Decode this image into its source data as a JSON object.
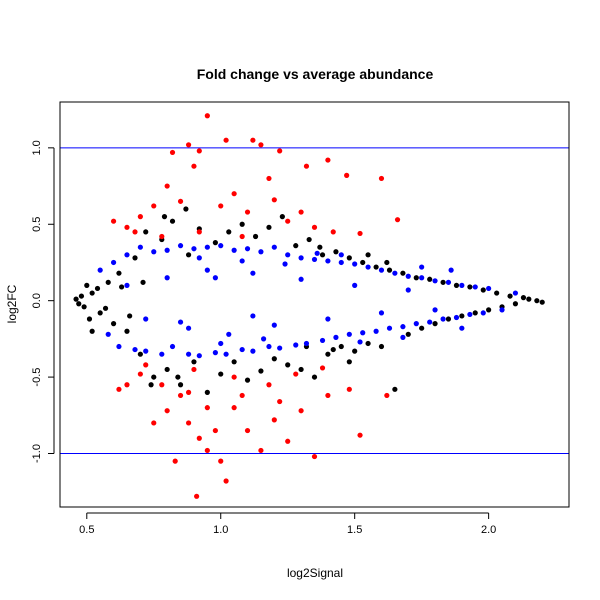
{
  "chart_data": {
    "type": "scatter",
    "title": "Fold change vs average abundance",
    "xlabel": "log2Signal",
    "ylabel": "log2FC",
    "xlim": [
      0.4,
      2.3
    ],
    "ylim": [
      -1.35,
      1.3
    ],
    "x_ticks": [
      0.5,
      1.0,
      1.5,
      2.0
    ],
    "x_tick_labels": [
      "0.5",
      "1.0",
      "1.5",
      "2.0"
    ],
    "y_ticks": [
      -1.0,
      -0.5,
      0.0,
      0.5,
      1.0
    ],
    "y_tick_labels": [
      "-1.0",
      "-0.5",
      "0.0",
      "0.5",
      "1.0"
    ],
    "grid": false,
    "reference_lines": [
      {
        "axis": "y",
        "value": 1.0,
        "color": "#0000ff"
      },
      {
        "axis": "y",
        "value": -1.0,
        "color": "#0000ff"
      }
    ],
    "colors": {
      "not_significant": "#000000",
      "significant_small_fc": "#0000ff",
      "significant_large_fc": "#ff0000",
      "reference_line": "#0000ff"
    },
    "series": [
      {
        "color": "#000000",
        "points": [
          [
            0.46,
            0.01
          ],
          [
            0.47,
            -0.02
          ],
          [
            0.48,
            0.03
          ],
          [
            0.49,
            -0.04
          ],
          [
            0.5,
            0.1
          ],
          [
            0.51,
            -0.12
          ],
          [
            0.52,
            0.05
          ],
          [
            0.55,
            -0.08
          ],
          [
            0.58,
            0.12
          ],
          [
            0.6,
            -0.15
          ],
          [
            0.62,
            0.18
          ],
          [
            0.65,
            -0.2
          ],
          [
            0.68,
            0.28
          ],
          [
            0.7,
            -0.35
          ],
          [
            0.72,
            0.45
          ],
          [
            0.75,
            -0.5
          ],
          [
            0.78,
            0.4
          ],
          [
            0.8,
            -0.45
          ],
          [
            0.82,
            0.52
          ],
          [
            0.85,
            -0.55
          ],
          [
            0.88,
            0.3
          ],
          [
            0.9,
            -0.4
          ],
          [
            0.92,
            0.47
          ],
          [
            0.95,
            -0.6
          ],
          [
            0.98,
            0.38
          ],
          [
            1.0,
            -0.48
          ],
          [
            1.03,
            0.45
          ],
          [
            1.05,
            -0.4
          ],
          [
            1.08,
            0.5
          ],
          [
            1.1,
            -0.52
          ],
          [
            1.13,
            0.42
          ],
          [
            1.15,
            -0.46
          ],
          [
            1.18,
            0.48
          ],
          [
            1.2,
            -0.38
          ],
          [
            1.23,
            0.55
          ],
          [
            1.25,
            -0.42
          ],
          [
            1.28,
            0.36
          ],
          [
            1.3,
            -0.45
          ],
          [
            1.33,
            0.4
          ],
          [
            1.35,
            -0.5
          ],
          [
            1.38,
            0.3
          ],
          [
            1.4,
            -0.35
          ],
          [
            1.43,
            0.32
          ],
          [
            1.45,
            -0.3
          ],
          [
            1.48,
            0.28
          ],
          [
            1.5,
            -0.33
          ],
          [
            1.53,
            0.25
          ],
          [
            1.55,
            -0.28
          ],
          [
            1.58,
            0.22
          ],
          [
            1.6,
            -0.3
          ],
          [
            1.63,
            0.2
          ],
          [
            1.65,
            -0.58
          ],
          [
            1.68,
            0.18
          ],
          [
            1.7,
            -0.22
          ],
          [
            1.73,
            0.15
          ],
          [
            1.75,
            -0.18
          ],
          [
            1.78,
            0.14
          ],
          [
            1.8,
            -0.15
          ],
          [
            1.83,
            0.12
          ],
          [
            1.85,
            -0.12
          ],
          [
            1.88,
            0.1
          ],
          [
            1.9,
            -0.1
          ],
          [
            1.93,
            0.09
          ],
          [
            1.95,
            -0.08
          ],
          [
            1.98,
            0.07
          ],
          [
            2.0,
            -0.06
          ],
          [
            2.03,
            0.05
          ],
          [
            2.05,
            -0.04
          ],
          [
            2.08,
            0.03
          ],
          [
            2.1,
            -0.02
          ],
          [
            2.13,
            0.02
          ],
          [
            2.15,
            0.01
          ],
          [
            2.18,
            0.0
          ],
          [
            2.2,
            -0.01
          ],
          [
            0.52,
            -0.2
          ],
          [
            0.54,
            0.08
          ],
          [
            0.57,
            -0.05
          ],
          [
            0.63,
            0.09
          ],
          [
            0.66,
            -0.1
          ],
          [
            0.71,
            0.12
          ],
          [
            0.74,
            -0.55
          ],
          [
            0.79,
            0.55
          ],
          [
            0.84,
            -0.5
          ],
          [
            0.87,
            0.6
          ],
          [
            1.32,
            -0.3
          ],
          [
            1.37,
            0.35
          ],
          [
            1.42,
            -0.32
          ],
          [
            1.48,
            -0.4
          ],
          [
            1.55,
            0.3
          ],
          [
            1.62,
            0.25
          ]
        ]
      },
      {
        "color": "#0000ff",
        "points": [
          [
            0.55,
            0.2
          ],
          [
            0.58,
            -0.22
          ],
          [
            0.6,
            0.25
          ],
          [
            0.62,
            -0.3
          ],
          [
            0.65,
            0.3
          ],
          [
            0.68,
            -0.32
          ],
          [
            0.7,
            0.35
          ],
          [
            0.72,
            -0.33
          ],
          [
            0.75,
            0.32
          ],
          [
            0.78,
            -0.35
          ],
          [
            0.8,
            0.33
          ],
          [
            0.82,
            -0.3
          ],
          [
            0.85,
            0.36
          ],
          [
            0.88,
            -0.35
          ],
          [
            0.9,
            0.34
          ],
          [
            0.92,
            -0.36
          ],
          [
            0.95,
            0.35
          ],
          [
            0.98,
            -0.34
          ],
          [
            1.0,
            0.36
          ],
          [
            1.02,
            -0.35
          ],
          [
            1.05,
            0.33
          ],
          [
            1.08,
            -0.32
          ],
          [
            1.1,
            0.34
          ],
          [
            1.12,
            -0.33
          ],
          [
            1.15,
            0.32
          ],
          [
            1.18,
            -0.3
          ],
          [
            1.2,
            0.35
          ],
          [
            1.22,
            -0.31
          ],
          [
            1.25,
            0.3
          ],
          [
            1.28,
            -0.29
          ],
          [
            1.3,
            0.28
          ],
          [
            1.32,
            -0.28
          ],
          [
            1.35,
            0.27
          ],
          [
            1.38,
            -0.26
          ],
          [
            1.4,
            0.26
          ],
          [
            1.43,
            -0.24
          ],
          [
            1.45,
            0.25
          ],
          [
            1.48,
            -0.22
          ],
          [
            1.5,
            0.24
          ],
          [
            1.53,
            -0.21
          ],
          [
            1.55,
            0.22
          ],
          [
            1.58,
            -0.2
          ],
          [
            1.6,
            0.2
          ],
          [
            1.63,
            -0.18
          ],
          [
            1.65,
            0.18
          ],
          [
            1.68,
            -0.17
          ],
          [
            1.7,
            0.16
          ],
          [
            1.73,
            -0.15
          ],
          [
            1.75,
            0.15
          ],
          [
            1.78,
            -0.14
          ],
          [
            1.8,
            0.13
          ],
          [
            1.83,
            -0.12
          ],
          [
            1.85,
            0.12
          ],
          [
            1.88,
            -0.11
          ],
          [
            1.9,
            0.1
          ],
          [
            1.93,
            -0.09
          ],
          [
            1.95,
            0.09
          ],
          [
            1.98,
            -0.08
          ],
          [
            2.0,
            0.08
          ],
          [
            2.05,
            -0.06
          ],
          [
            2.1,
            0.05
          ],
          [
            0.65,
            0.1
          ],
          [
            0.72,
            -0.12
          ],
          [
            0.8,
            0.15
          ],
          [
            0.88,
            -0.18
          ],
          [
            0.95,
            0.2
          ],
          [
            1.03,
            -0.22
          ],
          [
            1.12,
            0.18
          ],
          [
            1.2,
            -0.16
          ],
          [
            1.3,
            0.14
          ],
          [
            1.4,
            -0.12
          ],
          [
            1.5,
            0.1
          ],
          [
            1.6,
            -0.08
          ],
          [
            1.7,
            0.07
          ],
          [
            1.8,
            -0.06
          ],
          [
            0.92,
            0.28
          ],
          [
            1.0,
            -0.28
          ],
          [
            1.08,
            0.26
          ],
          [
            1.16,
            -0.25
          ],
          [
            1.24,
            0.24
          ],
          [
            1.86,
            0.2
          ],
          [
            1.9,
            -0.18
          ],
          [
            1.75,
            0.22
          ],
          [
            1.68,
            -0.24
          ],
          [
            1.45,
            0.3
          ],
          [
            1.52,
            -0.27
          ],
          [
            1.36,
            0.31
          ],
          [
            0.98,
            0.15
          ],
          [
            0.85,
            -0.14
          ],
          [
            1.12,
            -0.1
          ]
        ]
      },
      {
        "color": "#ff0000",
        "points": [
          [
            0.95,
            1.21
          ],
          [
            1.02,
            1.05
          ],
          [
            1.12,
            1.05
          ],
          [
            0.82,
            0.97
          ],
          [
            0.88,
            1.02
          ],
          [
            0.92,
            0.98
          ],
          [
            1.15,
            1.02
          ],
          [
            1.22,
            0.98
          ],
          [
            1.4,
            0.92
          ],
          [
            1.6,
            0.8
          ],
          [
            1.47,
            0.82
          ],
          [
            1.32,
            0.88
          ],
          [
            1.18,
            0.8
          ],
          [
            0.9,
            0.88
          ],
          [
            0.8,
            0.75
          ],
          [
            0.85,
            0.65
          ],
          [
            0.75,
            0.62
          ],
          [
            0.7,
            0.55
          ],
          [
            0.65,
            0.48
          ],
          [
            0.6,
            0.52
          ],
          [
            1.0,
            0.62
          ],
          [
            1.05,
            0.7
          ],
          [
            1.1,
            0.58
          ],
          [
            1.2,
            0.66
          ],
          [
            1.25,
            0.52
          ],
          [
            1.3,
            0.58
          ],
          [
            1.35,
            0.48
          ],
          [
            1.42,
            0.45
          ],
          [
            1.52,
            0.44
          ],
          [
            1.66,
            0.53
          ],
          [
            0.78,
            0.42
          ],
          [
            0.92,
            0.45
          ],
          [
            1.08,
            0.42
          ],
          [
            0.68,
            0.45
          ],
          [
            0.72,
            -0.42
          ],
          [
            0.78,
            -0.55
          ],
          [
            0.85,
            -0.62
          ],
          [
            0.8,
            -0.72
          ],
          [
            0.88,
            -0.8
          ],
          [
            0.92,
            -0.9
          ],
          [
            0.95,
            -0.98
          ],
          [
            1.0,
            -1.05
          ],
          [
            1.02,
            -1.18
          ],
          [
            0.91,
            -1.28
          ],
          [
            0.83,
            -1.05
          ],
          [
            0.98,
            -0.85
          ],
          [
            1.05,
            -0.7
          ],
          [
            1.1,
            -0.85
          ],
          [
            1.15,
            -0.98
          ],
          [
            1.2,
            -0.78
          ],
          [
            1.25,
            -0.92
          ],
          [
            1.3,
            -0.72
          ],
          [
            1.35,
            -1.02
          ],
          [
            1.4,
            -0.62
          ],
          [
            1.48,
            -0.58
          ],
          [
            1.52,
            -0.88
          ],
          [
            1.62,
            -0.62
          ],
          [
            0.7,
            -0.48
          ],
          [
            0.65,
            -0.55
          ],
          [
            0.62,
            -0.58
          ],
          [
            0.9,
            -0.45
          ],
          [
            1.05,
            -0.5
          ],
          [
            1.18,
            -0.55
          ],
          [
            1.28,
            -0.48
          ],
          [
            1.38,
            -0.44
          ],
          [
            0.75,
            -0.8
          ],
          [
            0.88,
            -0.6
          ],
          [
            1.08,
            -0.62
          ],
          [
            1.22,
            -0.66
          ],
          [
            0.95,
            -0.7
          ]
        ]
      }
    ]
  }
}
